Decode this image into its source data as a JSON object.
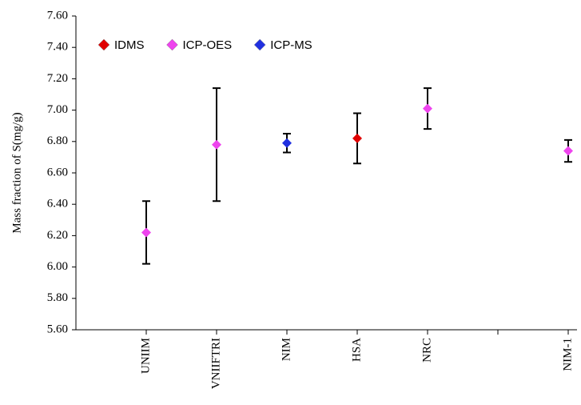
{
  "chart_data": {
    "type": "errorbar",
    "y_label": "Mass fraction of S(mg/g)",
    "categories": [
      null,
      "UNIIM",
      "VNIIFTRI",
      "NIM",
      "HSA",
      "NRC",
      null,
      "NIM-1"
    ],
    "series": [
      {
        "name": "IDMS",
        "color": "#e00000",
        "values": [
          null,
          null,
          null,
          null,
          6.82,
          null,
          null,
          null
        ],
        "errors": [
          null,
          null,
          null,
          null,
          0.16,
          null,
          null,
          null
        ]
      },
      {
        "name": "ICP-OES",
        "color": "#ee44ee",
        "values": [
          null,
          6.22,
          6.78,
          null,
          null,
          7.01,
          null,
          6.74
        ],
        "errors": [
          null,
          0.2,
          0.36,
          null,
          null,
          0.13,
          null,
          0.07
        ]
      },
      {
        "name": "ICP-MS",
        "color": "#2030e0",
        "values": [
          null,
          null,
          null,
          6.79,
          null,
          null,
          null,
          null
        ],
        "errors": [
          null,
          null,
          null,
          0.06,
          null,
          null,
          null,
          null
        ]
      }
    ],
    "ylim": [
      5.6,
      7.6
    ],
    "yticks": [
      {
        "value": 5.6,
        "label": "5.60"
      },
      {
        "value": 5.8,
        "label": "5.80"
      },
      {
        "value": 6.0,
        "label": "6.00"
      },
      {
        "value": 6.2,
        "label": "6.20"
      },
      {
        "value": 6.4,
        "label": "6.40"
      },
      {
        "value": 6.6,
        "label": "6.60"
      },
      {
        "value": 6.8,
        "label": "6.80"
      },
      {
        "value": 7.0,
        "label": "7.00"
      },
      {
        "value": 7.2,
        "label": "7.20"
      },
      {
        "value": 7.4,
        "label": "7.40"
      },
      {
        "value": 7.6,
        "label": "7.60"
      }
    ],
    "legend": "top-left"
  }
}
